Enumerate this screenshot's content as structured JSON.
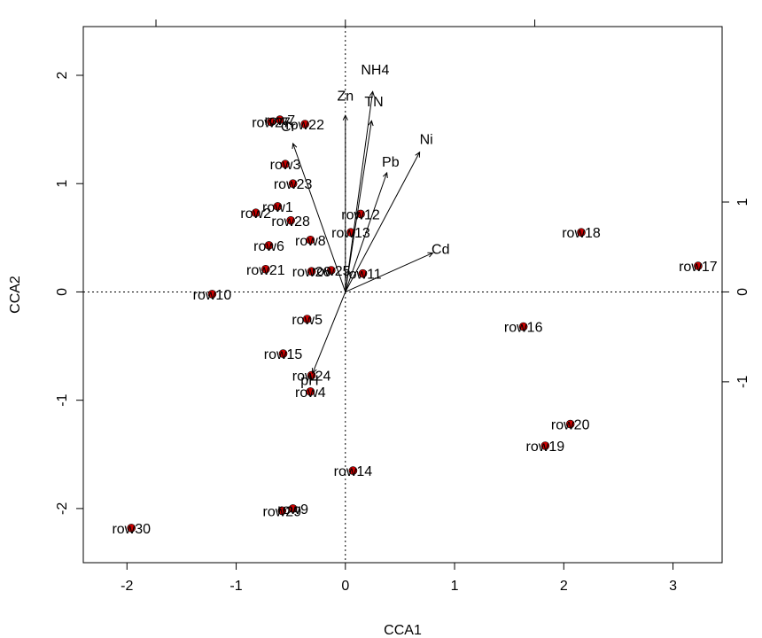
{
  "chart_data": {
    "type": "scatter",
    "subtype": "cca-biplot",
    "title": "",
    "xlabel": "CCA1",
    "ylabel": "CCA2",
    "xlim": [
      -2.4,
      3.45
    ],
    "ylim": [
      -2.5,
      2.45
    ],
    "x_ticks": [
      -2,
      -1,
      0,
      1,
      2,
      3
    ],
    "y_ticks": [
      -2,
      -1,
      0,
      1,
      2
    ],
    "x_tick_labels": [
      "-2",
      "-1",
      "0",
      "1",
      "2",
      "3"
    ],
    "y_tick_labels": [
      "-2",
      "-1",
      "0",
      "1",
      "2"
    ],
    "right_axis": {
      "ticks": [
        -1.865,
        0,
        1.865
      ],
      "labels": [
        "-1",
        "0",
        "1"
      ]
    },
    "point_color": "#cc0000",
    "reference_lines": "dotted at x=0 and y=0",
    "sites": [
      {
        "label": "row1",
        "x": -0.62,
        "y": 0.79
      },
      {
        "label": "row2",
        "x": -0.82,
        "y": 0.73
      },
      {
        "label": "row3",
        "x": -0.55,
        "y": 1.18
      },
      {
        "label": "row4",
        "x": -0.32,
        "y": -0.92
      },
      {
        "label": "row5",
        "x": -0.35,
        "y": -0.25
      },
      {
        "label": "row6",
        "x": -0.7,
        "y": 0.43
      },
      {
        "label": "row7",
        "x": -0.6,
        "y": 1.59
      },
      {
        "label": "row8",
        "x": -0.32,
        "y": 0.48
      },
      {
        "label": "row9",
        "x": -0.48,
        "y": -2.0
      },
      {
        "label": "row10",
        "x": -1.22,
        "y": -0.02
      },
      {
        "label": "row11",
        "x": 0.16,
        "y": 0.17
      },
      {
        "label": "row12",
        "x": 0.14,
        "y": 0.72
      },
      {
        "label": "row13",
        "x": 0.05,
        "y": 0.55
      },
      {
        "label": "row14",
        "x": 0.07,
        "y": -1.65
      },
      {
        "label": "row15",
        "x": -0.57,
        "y": -0.57
      },
      {
        "label": "row16",
        "x": 1.63,
        "y": -0.32
      },
      {
        "label": "row17",
        "x": 3.23,
        "y": 0.24
      },
      {
        "label": "row18",
        "x": 2.16,
        "y": 0.55
      },
      {
        "label": "row19",
        "x": 1.83,
        "y": -1.42
      },
      {
        "label": "row20",
        "x": 2.06,
        "y": -1.22
      },
      {
        "label": "row21",
        "x": -0.73,
        "y": 0.21
      },
      {
        "label": "row22",
        "x": -0.37,
        "y": 1.55
      },
      {
        "label": "row23",
        "x": -0.48,
        "y": 1.0
      },
      {
        "label": "row24",
        "x": -0.31,
        "y": -0.77
      },
      {
        "label": "row25",
        "x": -0.13,
        "y": 0.2
      },
      {
        "label": "row26",
        "x": -0.31,
        "y": 0.19
      },
      {
        "label": "row27",
        "x": -0.68,
        "y": 1.57
      },
      {
        "label": "row28",
        "x": -0.5,
        "y": 0.66
      },
      {
        "label": "row29",
        "x": -0.58,
        "y": -2.02
      },
      {
        "label": "row30",
        "x": -1.96,
        "y": -2.18
      }
    ],
    "env_vectors": [
      {
        "label": "NH4",
        "x": 0.25,
        "y": 1.85
      },
      {
        "label": "TN",
        "x": 0.24,
        "y": 1.58
      },
      {
        "label": "Zn",
        "x": 0.0,
        "y": 1.63
      },
      {
        "label": "Cr",
        "x": -0.48,
        "y": 1.37
      },
      {
        "label": "Ni",
        "x": 0.68,
        "y": 1.29
      },
      {
        "label": "Pb",
        "x": 0.38,
        "y": 1.1
      },
      {
        "label": "Cd",
        "x": 0.8,
        "y": 0.36
      },
      {
        "label": "pH",
        "x": -0.3,
        "y": -0.75
      }
    ]
  }
}
